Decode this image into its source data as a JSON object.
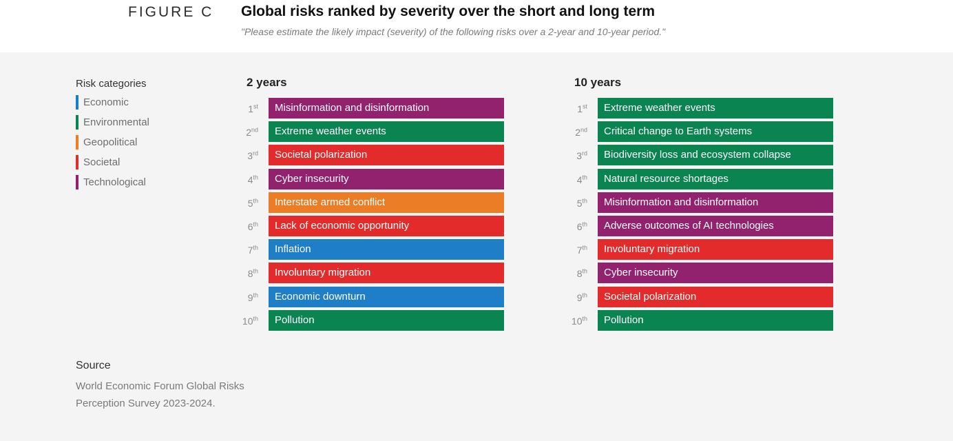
{
  "header": {
    "figure_label": "FIGURE C",
    "title": "Global risks ranked by severity over the short and long term",
    "subtitle": "\"Please estimate the likely impact (severity) of the following risks over a 2-year and 10-year period.\""
  },
  "legend": {
    "title": "Risk categories",
    "items": [
      {
        "label": "Economic",
        "color": "#1e7ec8"
      },
      {
        "label": "Environmental",
        "color": "#0a8450"
      },
      {
        "label": "Geopolitical",
        "color": "#ea7d25"
      },
      {
        "label": "Societal",
        "color": "#e42b2b"
      },
      {
        "label": "Technological",
        "color": "#92216e"
      }
    ]
  },
  "source": {
    "title": "Source",
    "text": "World Economic Forum Global Risks Perception Survey 2023-2024."
  },
  "chart_data": {
    "type": "table",
    "ranks": [
      {
        "num": "1",
        "suffix": "st"
      },
      {
        "num": "2",
        "suffix": "nd"
      },
      {
        "num": "3",
        "suffix": "rd"
      },
      {
        "num": "4",
        "suffix": "th"
      },
      {
        "num": "5",
        "suffix": "th"
      },
      {
        "num": "6",
        "suffix": "th"
      },
      {
        "num": "7",
        "suffix": "th"
      },
      {
        "num": "8",
        "suffix": "th"
      },
      {
        "num": "9",
        "suffix": "th"
      },
      {
        "num": "10",
        "suffix": "th"
      }
    ],
    "columns": [
      {
        "title": "2 years",
        "risks": [
          {
            "label": "Misinformation and disinformation",
            "category": "Technological"
          },
          {
            "label": "Extreme weather events",
            "category": "Environmental"
          },
          {
            "label": "Societal polarization",
            "category": "Societal"
          },
          {
            "label": "Cyber insecurity",
            "category": "Technological"
          },
          {
            "label": "Interstate armed conflict",
            "category": "Geopolitical"
          },
          {
            "label": "Lack of economic opportunity",
            "category": "Societal"
          },
          {
            "label": "Inflation",
            "category": "Economic"
          },
          {
            "label": "Involuntary migration",
            "category": "Societal"
          },
          {
            "label": "Economic downturn",
            "category": "Economic"
          },
          {
            "label": "Pollution",
            "category": "Environmental"
          }
        ]
      },
      {
        "title": "10 years",
        "risks": [
          {
            "label": "Extreme weather events",
            "category": "Environmental"
          },
          {
            "label": "Critical change to Earth systems",
            "category": "Environmental"
          },
          {
            "label": "Biodiversity loss and ecosystem collapse",
            "category": "Environmental"
          },
          {
            "label": "Natural resource shortages",
            "category": "Environmental"
          },
          {
            "label": "Misinformation and disinformation",
            "category": "Technological"
          },
          {
            "label": "Adverse outcomes of AI technologies",
            "category": "Technological"
          },
          {
            "label": "Involuntary migration",
            "category": "Societal"
          },
          {
            "label": "Cyber insecurity",
            "category": "Technological"
          },
          {
            "label": "Societal polarization",
            "category": "Societal"
          },
          {
            "label": "Pollution",
            "category": "Environmental"
          }
        ]
      }
    ]
  }
}
